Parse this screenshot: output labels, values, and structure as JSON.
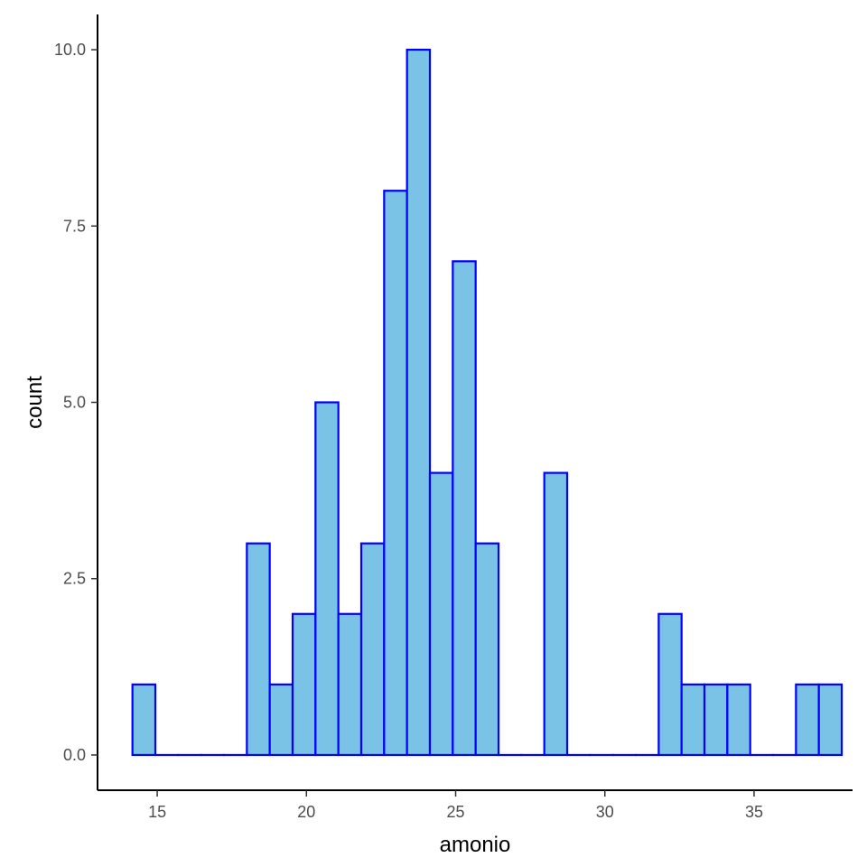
{
  "chart_data": {
    "type": "bar",
    "xlabel": "amonio",
    "ylabel": "count",
    "bin_width": 0.7667,
    "bin_start": 14.17,
    "counts": [
      1,
      0,
      0,
      0,
      0,
      3,
      1,
      2,
      5,
      2,
      3,
      8,
      10,
      4,
      7,
      3,
      0,
      0,
      4,
      0,
      0,
      0,
      0,
      2,
      1,
      1,
      1,
      0,
      0,
      1,
      1
    ],
    "xlim": [
      13.0,
      38.3
    ],
    "ylim": [
      -0.5,
      10.5
    ],
    "x_ticks": [
      {
        "value": 15,
        "label": "15"
      },
      {
        "value": 20,
        "label": "20"
      },
      {
        "value": 25,
        "label": "25"
      },
      {
        "value": 30,
        "label": "30"
      },
      {
        "value": 35,
        "label": "35"
      }
    ],
    "y_ticks": [
      {
        "value": 0,
        "label": "0.0"
      },
      {
        "value": 2.5,
        "label": "2.5"
      },
      {
        "value": 5,
        "label": "5.0"
      },
      {
        "value": 7.5,
        "label": "7.5"
      },
      {
        "value": 10,
        "label": "10.0"
      }
    ],
    "grid": false,
    "bar_fill": "#7ac3e7",
    "bar_stroke": "#0000ff"
  }
}
